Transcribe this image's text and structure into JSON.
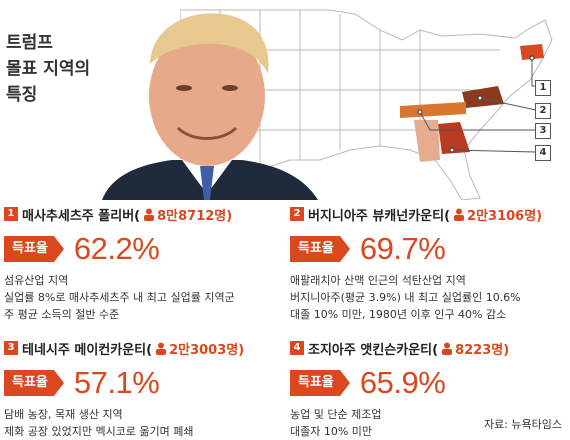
{
  "title_lines": [
    "트럼프",
    "몰표 지역의",
    "특징"
  ],
  "callouts": [
    "1",
    "2",
    "3",
    "4"
  ],
  "accent_color": "#d9481f",
  "panels": [
    {
      "num": "1",
      "name": "매사추세츠주 폴리버(",
      "population": "8만8712명)",
      "vote_label": "득표율",
      "vote_pct": "62.2%",
      "desc": [
        "섬유산업 지역",
        "실업률 8%로 매사추세츠주 내 최고 실업률 지역군",
        "주 평균 소득의 절반 수준"
      ]
    },
    {
      "num": "2",
      "name": "버지니아주 뷰캐넌카운티(",
      "population": "2만3106명)",
      "vote_label": "득표율",
      "vote_pct": "69.7%",
      "desc": [
        "애팔래치아 산맥 인근의 석탄산업 지역",
        "버지니아주(평균 3.9%) 내 최고 실업률인 10.6%",
        "대졸 10% 미만, 1980년 이후 인구 40% 감소"
      ]
    },
    {
      "num": "3",
      "name": "테네시주 메이컨카운티(",
      "population": "2만3003명)",
      "vote_label": "득표율",
      "vote_pct": "57.1%",
      "desc": [
        "담배 농장, 목재 생산 지역",
        "제화 공장 있었지만 멕시코로 옮기며 폐쇄"
      ]
    },
    {
      "num": "4",
      "name": "조지아주 앳킨슨카운티(",
      "population": "8223명)",
      "vote_label": "득표율",
      "vote_pct": "65.9%",
      "desc": [
        "농업 및 단순 제조업",
        "대졸자 10% 미만"
      ]
    }
  ],
  "source": "자료: 뉴욕타임스"
}
